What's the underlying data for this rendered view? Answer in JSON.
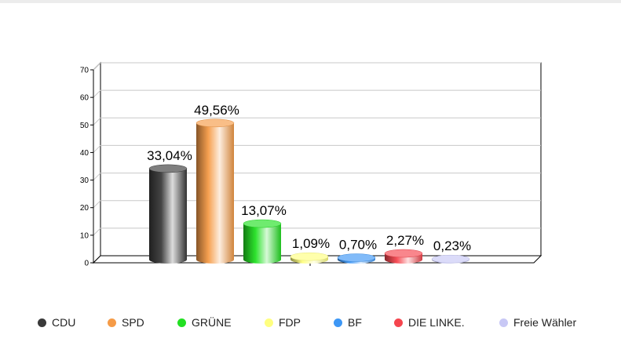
{
  "chart_data": {
    "type": "bar",
    "categories": [
      "CDU",
      "SPD",
      "GRÜNE",
      "FDP",
      "BF",
      "DIE LINKE.",
      "Freie Wähler"
    ],
    "values": [
      33.04,
      49.56,
      13.07,
      1.09,
      0.7,
      2.27,
      0.23
    ],
    "data_labels": [
      "33,04%",
      "49,56%",
      "13,07%",
      "1,09%",
      "0,70%",
      "2,27%",
      "0,23%"
    ],
    "colors": [
      "#3a3a3a",
      "#f59b47",
      "#22e022",
      "#ffff80",
      "#3d97f5",
      "#f5454e",
      "#c8c8f5"
    ],
    "ylim": [
      0,
      70
    ],
    "yticks": [
      0,
      10,
      20,
      30,
      40,
      50,
      60,
      70
    ],
    "grid": true,
    "legend": "bottom",
    "title": "",
    "xlabel": "",
    "ylabel": ""
  },
  "legend": {
    "items": [
      {
        "label": "CDU",
        "color": "#3a3a3a"
      },
      {
        "label": "SPD",
        "color": "#f59b47"
      },
      {
        "label": "GRÜNE",
        "color": "#22e022"
      },
      {
        "label": "FDP",
        "color": "#ffff80"
      },
      {
        "label": "BF",
        "color": "#3d97f5"
      },
      {
        "label": "DIE LINKE.",
        "color": "#f5454e"
      },
      {
        "label": "Freie Wähler",
        "color": "#c8c8f5"
      }
    ]
  }
}
